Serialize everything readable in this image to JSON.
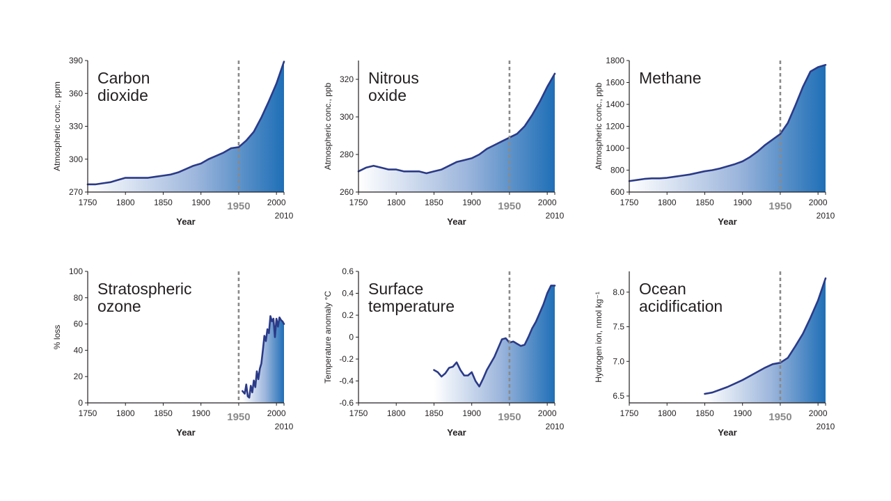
{
  "colors": {
    "line": "#2b3a87",
    "fill_dark": "#1f6fb7",
    "fill_light": "#ffffff",
    "axis": "#231f20",
    "marker": "#8a8a8a"
  },
  "chart_data": [
    {
      "type": "area",
      "title": [
        "Carbon",
        "dioxide"
      ],
      "ylabel": "Atmospheric conc., ppm",
      "xlabel": "Year",
      "xlim": [
        1750,
        2010
      ],
      "ylim": [
        270,
        390
      ],
      "xticks": [
        1750,
        1800,
        1850,
        1900,
        1950,
        2000
      ],
      "yticks": [
        270,
        300,
        330,
        360,
        390
      ],
      "marker_year": 1950,
      "marker_label": "1950",
      "end_label": "2010",
      "x": [
        1750,
        1760,
        1770,
        1780,
        1790,
        1800,
        1810,
        1820,
        1830,
        1840,
        1850,
        1860,
        1870,
        1880,
        1890,
        1900,
        1910,
        1920,
        1930,
        1940,
        1950,
        1960,
        1970,
        1980,
        1990,
        2000,
        2010
      ],
      "y": [
        277,
        277,
        278,
        279,
        281,
        283,
        283,
        283,
        283,
        284,
        285,
        286,
        288,
        291,
        294,
        296,
        300,
        303,
        306,
        310,
        311,
        317,
        325,
        338,
        353,
        369,
        389
      ]
    },
    {
      "type": "area",
      "title": [
        "Nitrous",
        "oxide"
      ],
      "ylabel": "Atmospheric conc., ppb",
      "xlabel": "Year",
      "xlim": [
        1750,
        2010
      ],
      "ylim": [
        260,
        330
      ],
      "xticks": [
        1750,
        1800,
        1850,
        1900,
        1950,
        2000
      ],
      "yticks": [
        260,
        280,
        300,
        320
      ],
      "marker_year": 1950,
      "marker_label": "1950",
      "end_label": "2010",
      "x": [
        1750,
        1760,
        1770,
        1780,
        1790,
        1800,
        1810,
        1820,
        1830,
        1840,
        1850,
        1860,
        1870,
        1880,
        1890,
        1900,
        1910,
        1920,
        1930,
        1940,
        1950,
        1960,
        1970,
        1980,
        1990,
        2000,
        2010
      ],
      "y": [
        271,
        273,
        274,
        273,
        272,
        272,
        271,
        271,
        271,
        270,
        271,
        272,
        274,
        276,
        277,
        278,
        280,
        283,
        285,
        287,
        289,
        291,
        295,
        301,
        308,
        316,
        323
      ]
    },
    {
      "type": "area",
      "title": [
        "Methane"
      ],
      "ylabel": "Atmospheric conc., ppb",
      "xlabel": "Year",
      "xlim": [
        1750,
        2010
      ],
      "ylim": [
        600,
        1800
      ],
      "xticks": [
        1750,
        1800,
        1850,
        1900,
        1950,
        2000
      ],
      "yticks": [
        600,
        800,
        1000,
        1200,
        1400,
        1600,
        1800
      ],
      "marker_year": 1950,
      "marker_label": "1950",
      "end_label": "2010",
      "x": [
        1750,
        1760,
        1770,
        1780,
        1790,
        1800,
        1810,
        1820,
        1830,
        1840,
        1850,
        1860,
        1870,
        1880,
        1890,
        1900,
        1910,
        1920,
        1930,
        1940,
        1950,
        1960,
        1970,
        1980,
        1990,
        2000,
        2010
      ],
      "y": [
        700,
        710,
        720,
        725,
        725,
        730,
        740,
        750,
        760,
        775,
        790,
        800,
        815,
        835,
        855,
        880,
        920,
        970,
        1030,
        1080,
        1130,
        1230,
        1390,
        1560,
        1700,
        1740,
        1760
      ]
    },
    {
      "type": "area",
      "title": [
        "Stratospheric",
        "ozone"
      ],
      "ylabel": "% loss",
      "xlabel": "Year",
      "xlim": [
        1750,
        2010
      ],
      "ylim": [
        0,
        100
      ],
      "xticks": [
        1750,
        1800,
        1850,
        1900,
        1950,
        2000
      ],
      "yticks": [
        0,
        20,
        40,
        60,
        80,
        100
      ],
      "marker_year": 1950,
      "marker_label": "1950",
      "end_label": "2010",
      "x": [
        1955,
        1958,
        1960,
        1962,
        1964,
        1966,
        1968,
        1970,
        1972,
        1974,
        1976,
        1978,
        1980,
        1982,
        1984,
        1986,
        1988,
        1990,
        1992,
        1994,
        1996,
        1998,
        2000,
        2002,
        2004,
        2006,
        2008,
        2010
      ],
      "y": [
        9,
        7,
        14,
        5,
        4,
        13,
        8,
        17,
        12,
        24,
        18,
        26,
        30,
        40,
        51,
        47,
        56,
        53,
        66,
        62,
        64,
        50,
        64,
        58,
        65,
        63,
        62,
        60
      ]
    },
    {
      "type": "area",
      "title": [
        "Surface",
        "temperature"
      ],
      "ylabel": "Temperature anomaly °C",
      "xlabel": "Year",
      "xlim": [
        1750,
        2010
      ],
      "ylim": [
        -0.6,
        0.6
      ],
      "xticks": [
        1750,
        1800,
        1850,
        1900,
        1950,
        2000
      ],
      "yticks": [
        -0.6,
        -0.4,
        -0.2,
        0,
        0.2,
        0.4,
        0.6
      ],
      "marker_year": 1950,
      "marker_label": "1950",
      "end_label": "2010",
      "x": [
        1850,
        1855,
        1860,
        1865,
        1870,
        1875,
        1880,
        1885,
        1890,
        1895,
        1900,
        1905,
        1910,
        1915,
        1920,
        1925,
        1930,
        1935,
        1940,
        1945,
        1950,
        1955,
        1960,
        1965,
        1970,
        1975,
        1980,
        1985,
        1990,
        1995,
        2000,
        2005,
        2010
      ],
      "y": [
        -0.3,
        -0.32,
        -0.36,
        -0.33,
        -0.28,
        -0.27,
        -0.23,
        -0.3,
        -0.35,
        -0.35,
        -0.32,
        -0.4,
        -0.45,
        -0.38,
        -0.3,
        -0.24,
        -0.18,
        -0.1,
        -0.02,
        -0.01,
        -0.05,
        -0.04,
        -0.06,
        -0.08,
        -0.07,
        0.0,
        0.08,
        0.14,
        0.22,
        0.3,
        0.4,
        0.47,
        0.47
      ]
    },
    {
      "type": "area",
      "title": [
        "Ocean",
        "acidification"
      ],
      "ylabel": "Hydrogen ion, nmol kg⁻¹",
      "xlabel": "Year",
      "xlim": [
        1750,
        2010
      ],
      "ylim": [
        6.4,
        8.3
      ],
      "xticks": [
        1750,
        1800,
        1850,
        1900,
        1950,
        2000
      ],
      "yticks": [
        6.5,
        7.0,
        7.5,
        8.0
      ],
      "marker_year": 1950,
      "marker_label": "1950",
      "end_label": "2010",
      "x": [
        1850,
        1860,
        1870,
        1880,
        1890,
        1900,
        1910,
        1920,
        1930,
        1940,
        1950,
        1960,
        1970,
        1980,
        1990,
        2000,
        2010
      ],
      "y": [
        6.53,
        6.55,
        6.59,
        6.63,
        6.68,
        6.73,
        6.79,
        6.85,
        6.91,
        6.96,
        6.98,
        7.05,
        7.22,
        7.4,
        7.63,
        7.88,
        8.2
      ]
    }
  ]
}
